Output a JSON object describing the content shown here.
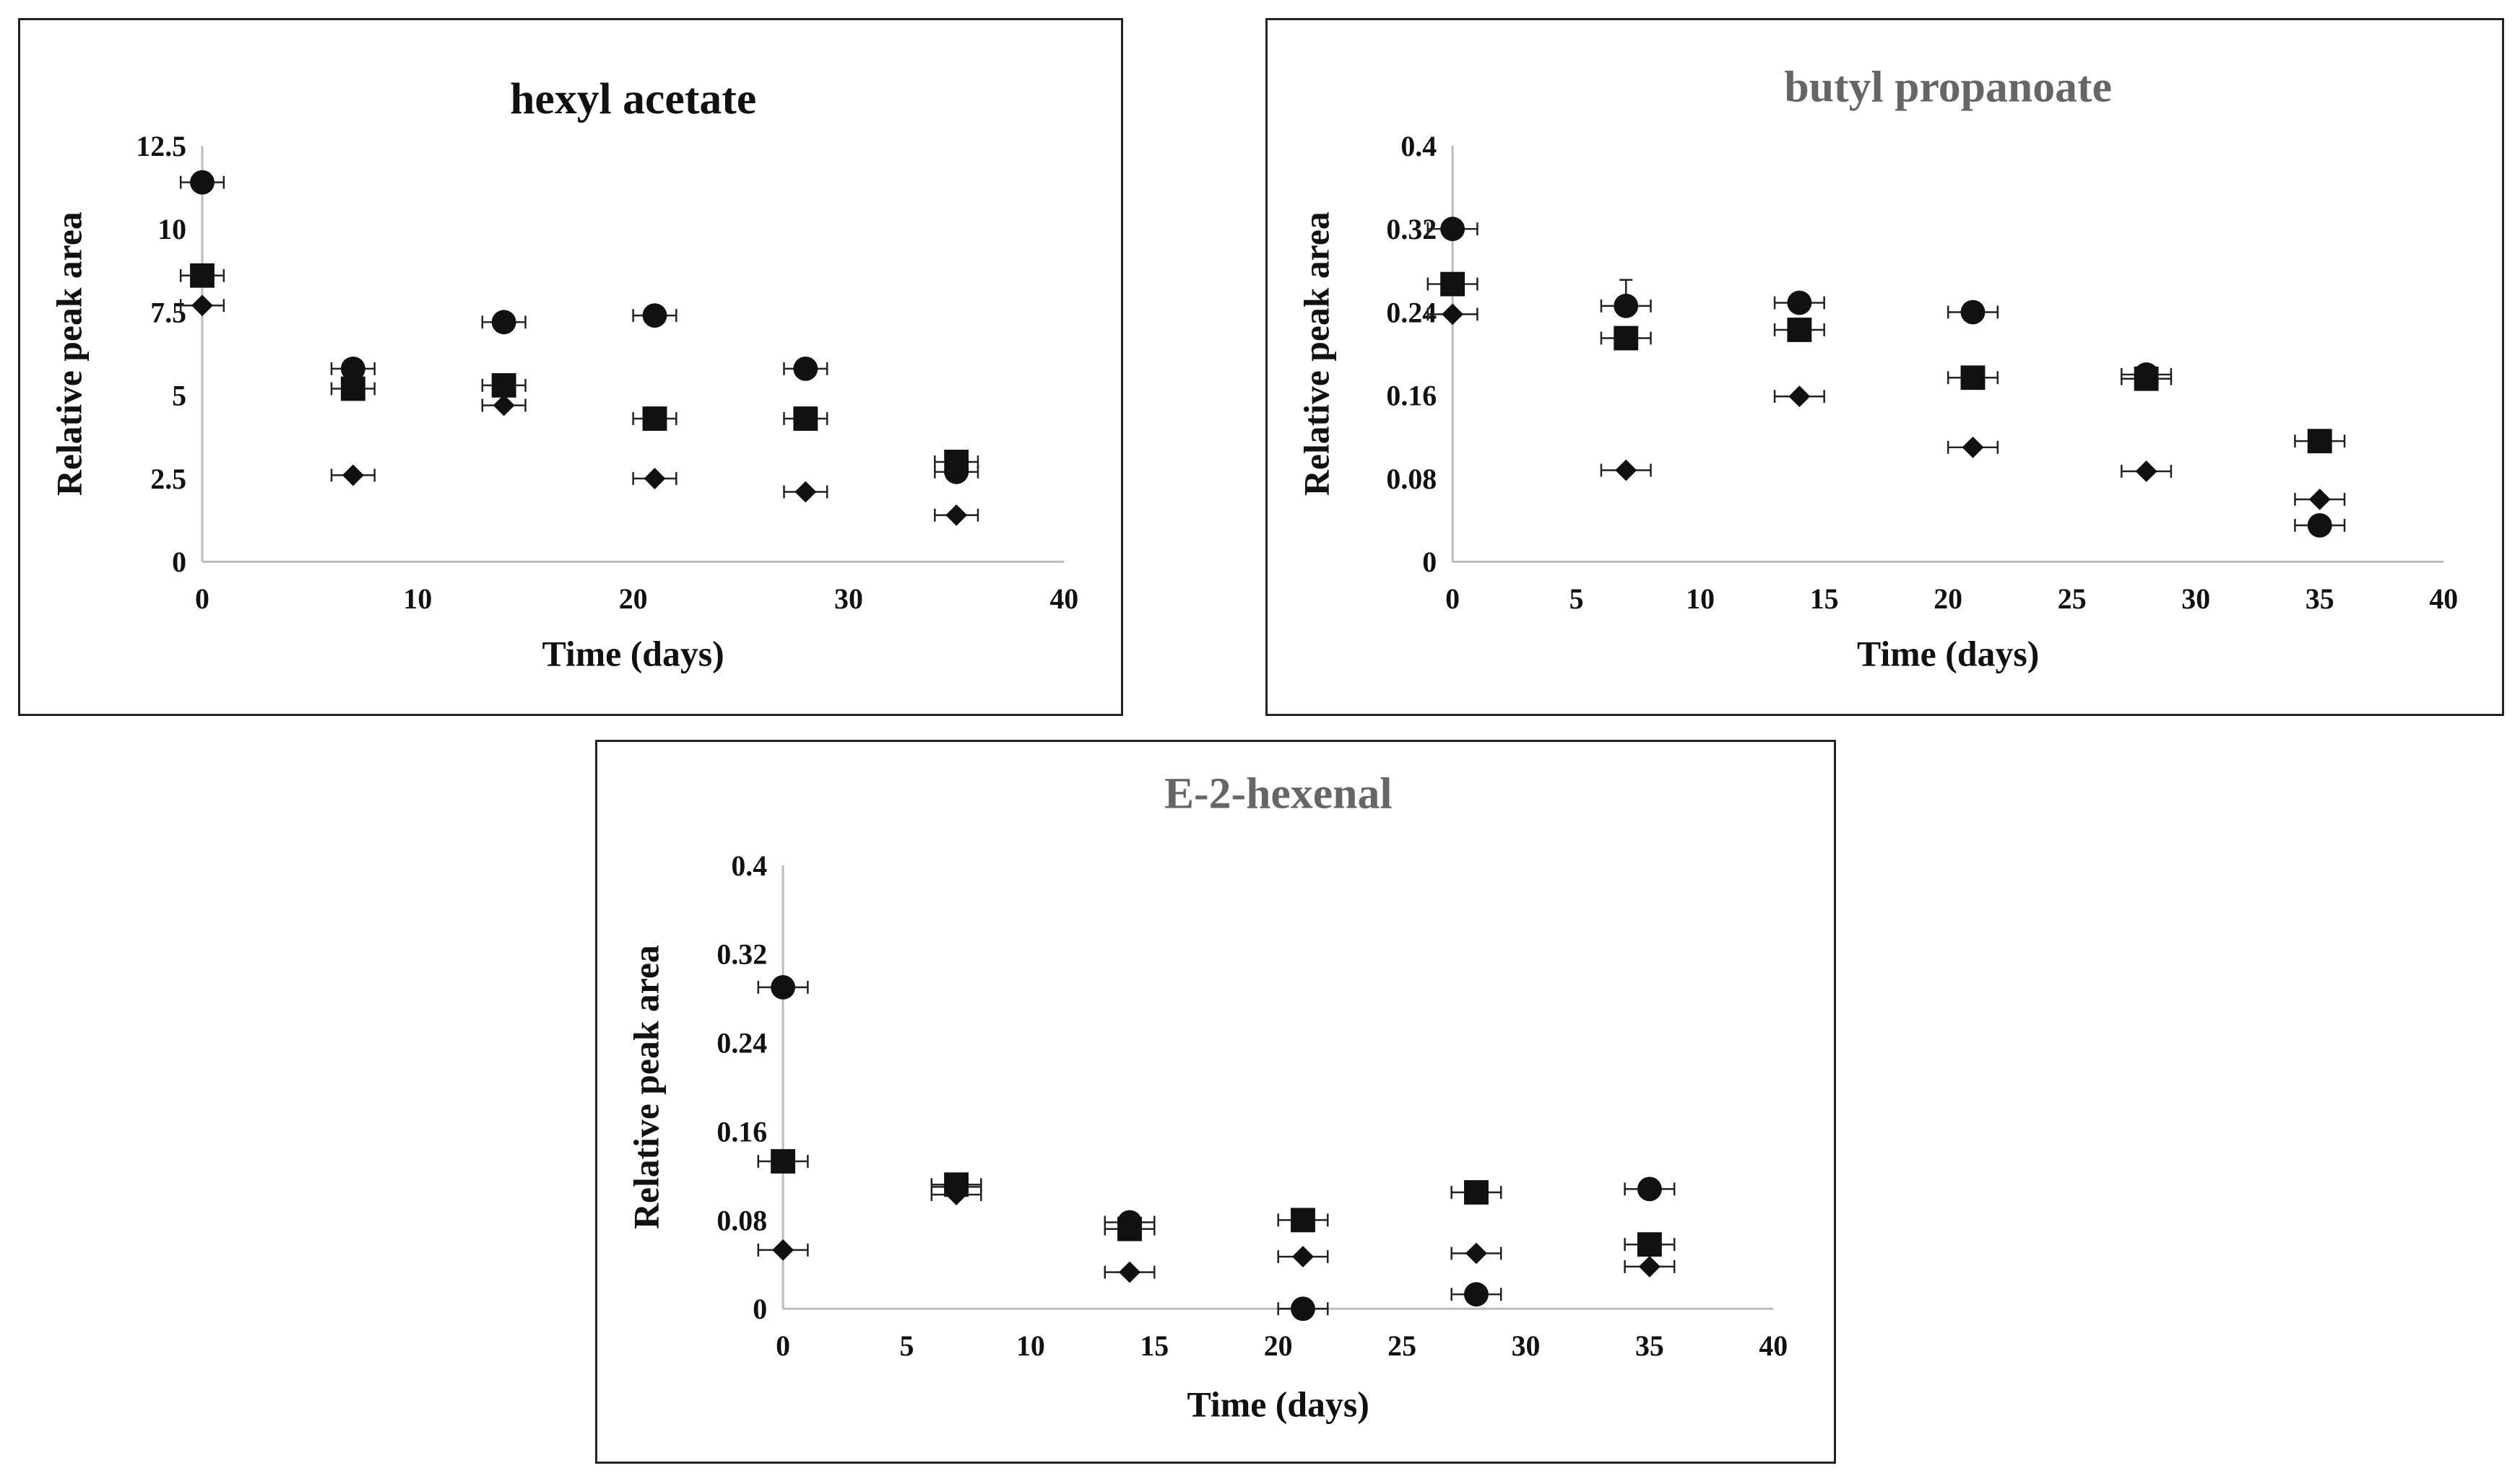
{
  "chart_data": [
    {
      "type": "scatter",
      "title": "hexyl acetate",
      "title_color": "#111111",
      "xlabel": "Time (days)",
      "ylabel": "Relative peak area",
      "xlim": [
        0,
        40
      ],
      "ylim": [
        0,
        12.5
      ],
      "xticks": [
        "0",
        "10",
        "20",
        "30",
        "40"
      ],
      "xtick_values": [
        0,
        10,
        20,
        30,
        40
      ],
      "yticks": [
        "0",
        "2.5",
        "5",
        "7.5",
        "10",
        "12.5"
      ],
      "ytick_values": [
        0,
        2.5,
        5,
        7.5,
        10,
        12.5
      ],
      "x_error": 1,
      "series": [
        {
          "name": "circle",
          "marker": "circle",
          "x": [
            0,
            7,
            14,
            21,
            28,
            35
          ],
          "y": [
            11.4,
            5.8,
            7.2,
            7.4,
            5.8,
            2.7
          ]
        },
        {
          "name": "square",
          "marker": "square",
          "x": [
            0,
            7,
            14,
            21,
            28,
            35
          ],
          "y": [
            8.6,
            5.2,
            5.3,
            4.3,
            4.3,
            3.0
          ]
        },
        {
          "name": "diamond",
          "marker": "diamond",
          "x": [
            0,
            7,
            14,
            21,
            28,
            35
          ],
          "y": [
            7.7,
            2.6,
            4.7,
            2.5,
            2.1,
            1.4
          ]
        }
      ]
    },
    {
      "type": "scatter",
      "title": "butyl propanoate",
      "title_color": "#666666",
      "xlabel": "Time (days)",
      "ylabel": "Relative peak area",
      "xlim": [
        0,
        40
      ],
      "ylim": [
        0,
        0.4
      ],
      "xticks": [
        "0",
        "5",
        "10",
        "15",
        "20",
        "25",
        "30",
        "35",
        "40"
      ],
      "xtick_values": [
        0,
        5,
        10,
        15,
        20,
        25,
        30,
        35,
        40
      ],
      "yticks": [
        "0",
        "0.08",
        "0.16",
        "0.24",
        "0.32",
        "0.4"
      ],
      "ytick_values": [
        0,
        0.08,
        0.16,
        0.24,
        0.32,
        0.4
      ],
      "x_error": 1,
      "series": [
        {
          "name": "circle",
          "marker": "circle",
          "x": [
            0,
            7,
            14,
            21,
            28,
            35
          ],
          "y": [
            0.32,
            0.246,
            0.249,
            0.24,
            0.18,
            0.035
          ],
          "y_error": [
            0,
            0.025,
            0,
            0,
            0,
            0
          ]
        },
        {
          "name": "square",
          "marker": "square",
          "x": [
            0,
            7,
            14,
            21,
            28,
            35
          ],
          "y": [
            0.267,
            0.215,
            0.223,
            0.177,
            0.176,
            0.116
          ]
        },
        {
          "name": "diamond",
          "marker": "diamond",
          "x": [
            0,
            7,
            14,
            21,
            28,
            35
          ],
          "y": [
            0.238,
            0.088,
            0.159,
            0.11,
            0.087,
            0.06
          ]
        }
      ]
    },
    {
      "type": "scatter",
      "title": "E-2-hexenal",
      "title_color": "#666666",
      "xlabel": "Time (days)",
      "ylabel": "Relative peak area",
      "xlim": [
        0,
        40
      ],
      "ylim": [
        0,
        0.4
      ],
      "xticks": [
        "0",
        "5",
        "10",
        "15",
        "20",
        "25",
        "30",
        "35",
        "40"
      ],
      "xtick_values": [
        0,
        5,
        10,
        15,
        20,
        25,
        30,
        35,
        40
      ],
      "yticks": [
        "0",
        "0.08",
        "0.16",
        "0.24",
        "0.32",
        "0.4"
      ],
      "ytick_values": [
        0,
        0.08,
        0.16,
        0.24,
        0.32,
        0.4
      ],
      "x_error": 1,
      "series": [
        {
          "name": "circle",
          "marker": "circle",
          "x": [
            0,
            7,
            14,
            21,
            28,
            35
          ],
          "y": [
            0.29,
            0.11,
            0.078,
            0.0,
            0.013,
            0.108
          ]
        },
        {
          "name": "square",
          "marker": "square",
          "x": [
            0,
            7,
            14,
            21,
            28,
            35
          ],
          "y": [
            0.133,
            0.112,
            0.072,
            0.08,
            0.105,
            0.058
          ]
        },
        {
          "name": "diamond",
          "marker": "diamond",
          "x": [
            0,
            7,
            14,
            21,
            28,
            35
          ],
          "y": [
            0.053,
            0.103,
            0.033,
            0.047,
            0.05,
            0.038
          ]
        }
      ]
    }
  ]
}
